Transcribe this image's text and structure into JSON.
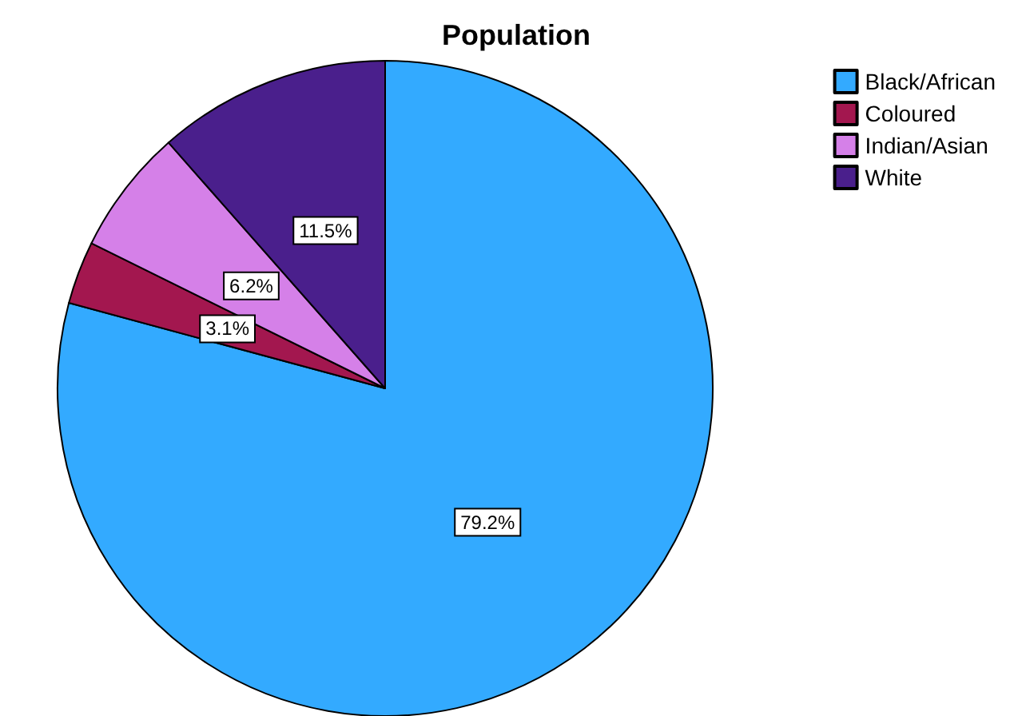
{
  "chart_data": {
    "type": "pie",
    "title": "Population",
    "categories": [
      "Black/African",
      "Coloured",
      "Indian/Asian",
      "White"
    ],
    "values": [
      79.2,
      3.1,
      6.2,
      11.5
    ],
    "colors": [
      "#33aaff",
      "#a3174f",
      "#d580e8",
      "#4a1f8c"
    ],
    "value_labels": [
      "79.2%",
      "3.1%",
      "6.2%",
      "11.5%"
    ],
    "legend": "top right"
  }
}
